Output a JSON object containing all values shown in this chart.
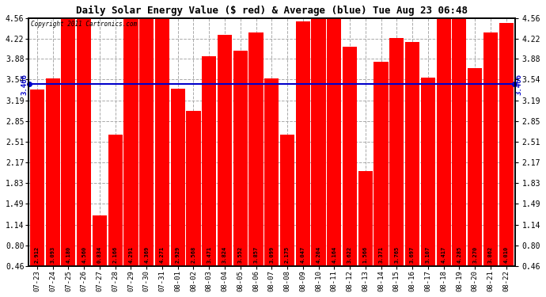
{
  "title": "Daily Solar Energy Value ($ red) & Average (blue) Tue Aug 23 06:48",
  "copyright": "Copyright 2011 Cartronics.com",
  "average": 3.466,
  "bar_color": "#ff0000",
  "avg_line_color": "#0000cc",
  "plot_bg_color": "#ffffff",
  "grid_color": "#aaaaaa",
  "title_color": "#000000",
  "fig_bg_color": "#ffffff",
  "categories": [
    "07-23",
    "07-24",
    "07-25",
    "07-26",
    "07-27",
    "07-28",
    "07-29",
    "07-30",
    "07-31",
    "08-01",
    "08-02",
    "08-03",
    "08-04",
    "08-05",
    "08-06",
    "08-07",
    "08-08",
    "08-09",
    "08-10",
    "08-11",
    "08-12",
    "08-13",
    "08-14",
    "08-15",
    "08-16",
    "08-17",
    "08-18",
    "08-19",
    "08-20",
    "08-21",
    "08-22"
  ],
  "values": [
    2.912,
    3.093,
    4.18,
    4.56,
    0.834,
    2.166,
    4.291,
    4.369,
    4.271,
    2.929,
    2.568,
    3.471,
    3.824,
    3.552,
    3.857,
    3.099,
    2.175,
    4.047,
    4.204,
    4.164,
    3.622,
    1.566,
    3.371,
    3.765,
    3.697,
    3.107,
    4.417,
    4.285,
    3.27,
    3.862,
    4.01
  ],
  "ylim_min": 0.46,
  "ylim_max": 4.56,
  "yticks": [
    0.46,
    0.8,
    1.14,
    1.49,
    1.83,
    2.17,
    2.51,
    2.85,
    3.19,
    3.54,
    3.88,
    4.22,
    4.56
  ]
}
